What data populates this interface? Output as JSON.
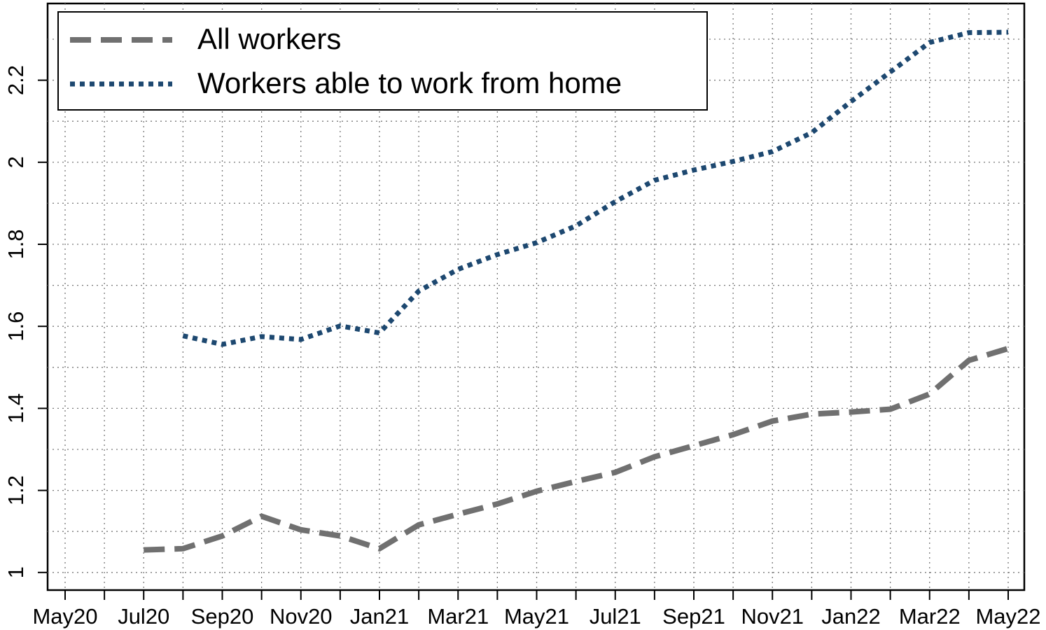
{
  "chart_data": {
    "type": "line",
    "categories": [
      "May20",
      null,
      "Jul20",
      null,
      "Sep20",
      null,
      "Nov20",
      null,
      "Jan21",
      null,
      "Mar21",
      null,
      "May21",
      null,
      "Jul21",
      null,
      "Sep21",
      null,
      "Nov21",
      null,
      "Jan22",
      null,
      "Mar22",
      null,
      "May22"
    ],
    "series": [
      {
        "name": "All workers",
        "color": "#707070",
        "style": "dashed",
        "values": [
          null,
          null,
          1.055,
          1.058,
          1.089,
          1.137,
          1.104,
          1.089,
          1.058,
          1.116,
          1.142,
          1.167,
          1.198,
          1.222,
          1.244,
          1.282,
          1.309,
          1.336,
          1.369,
          1.386,
          1.391,
          1.398,
          1.435,
          1.517,
          1.546
        ]
      },
      {
        "name": "Workers able to work from home",
        "color": "#1d4870",
        "style": "dotted",
        "values": [
          null,
          null,
          null,
          1.577,
          1.556,
          1.575,
          1.568,
          1.601,
          1.584,
          1.686,
          1.739,
          1.775,
          1.804,
          1.845,
          1.904,
          1.956,
          1.981,
          2.002,
          2.026,
          2.072,
          2.148,
          2.22,
          2.292,
          2.316,
          2.317
        ]
      }
    ],
    "ylim": [
      0.957,
      2.387
    ],
    "yticks": [
      1,
      1.2,
      1.4,
      1.6,
      1.8,
      2,
      2.2
    ],
    "y_minor_ticks": [
      1.1,
      1.3,
      1.5,
      1.7,
      1.9,
      2.1,
      2.3
    ],
    "grid": true,
    "legend": "top-left"
  }
}
